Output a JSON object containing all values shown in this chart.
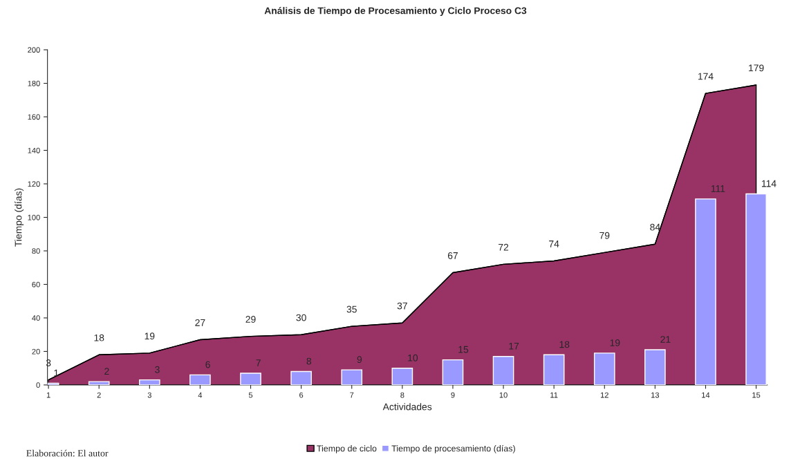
{
  "chart_data": {
    "type": "area",
    "title": "Análisis de Tiempo de Procesamiento y Ciclo Proceso C3",
    "xlabel": "Actividades",
    "ylabel": "Tiempo (días)",
    "categories": [
      "1",
      "2",
      "3",
      "4",
      "5",
      "6",
      "7",
      "8",
      "9",
      "10",
      "11",
      "12",
      "13",
      "14",
      "15"
    ],
    "series": [
      {
        "name": "Tiempo de ciclo",
        "color": "#993366",
        "values": [
          3,
          18,
          19,
          27,
          29,
          30,
          35,
          37,
          67,
          72,
          74,
          79,
          84,
          174,
          179
        ]
      },
      {
        "name": "Tiempo de procesamiento (días)",
        "type": "bar",
        "color": "#9999ff",
        "values": [
          1,
          2,
          3,
          6,
          7,
          8,
          9,
          10,
          15,
          17,
          18,
          19,
          21,
          111,
          114
        ]
      }
    ],
    "ylim": [
      0,
      200
    ],
    "yticks": [
      0,
      20,
      40,
      60,
      80,
      100,
      120,
      140,
      160,
      180,
      200
    ],
    "grid": false,
    "legend": "bottom",
    "data_labels": true,
    "annotations": [
      "Elaboración: El autor"
    ]
  }
}
